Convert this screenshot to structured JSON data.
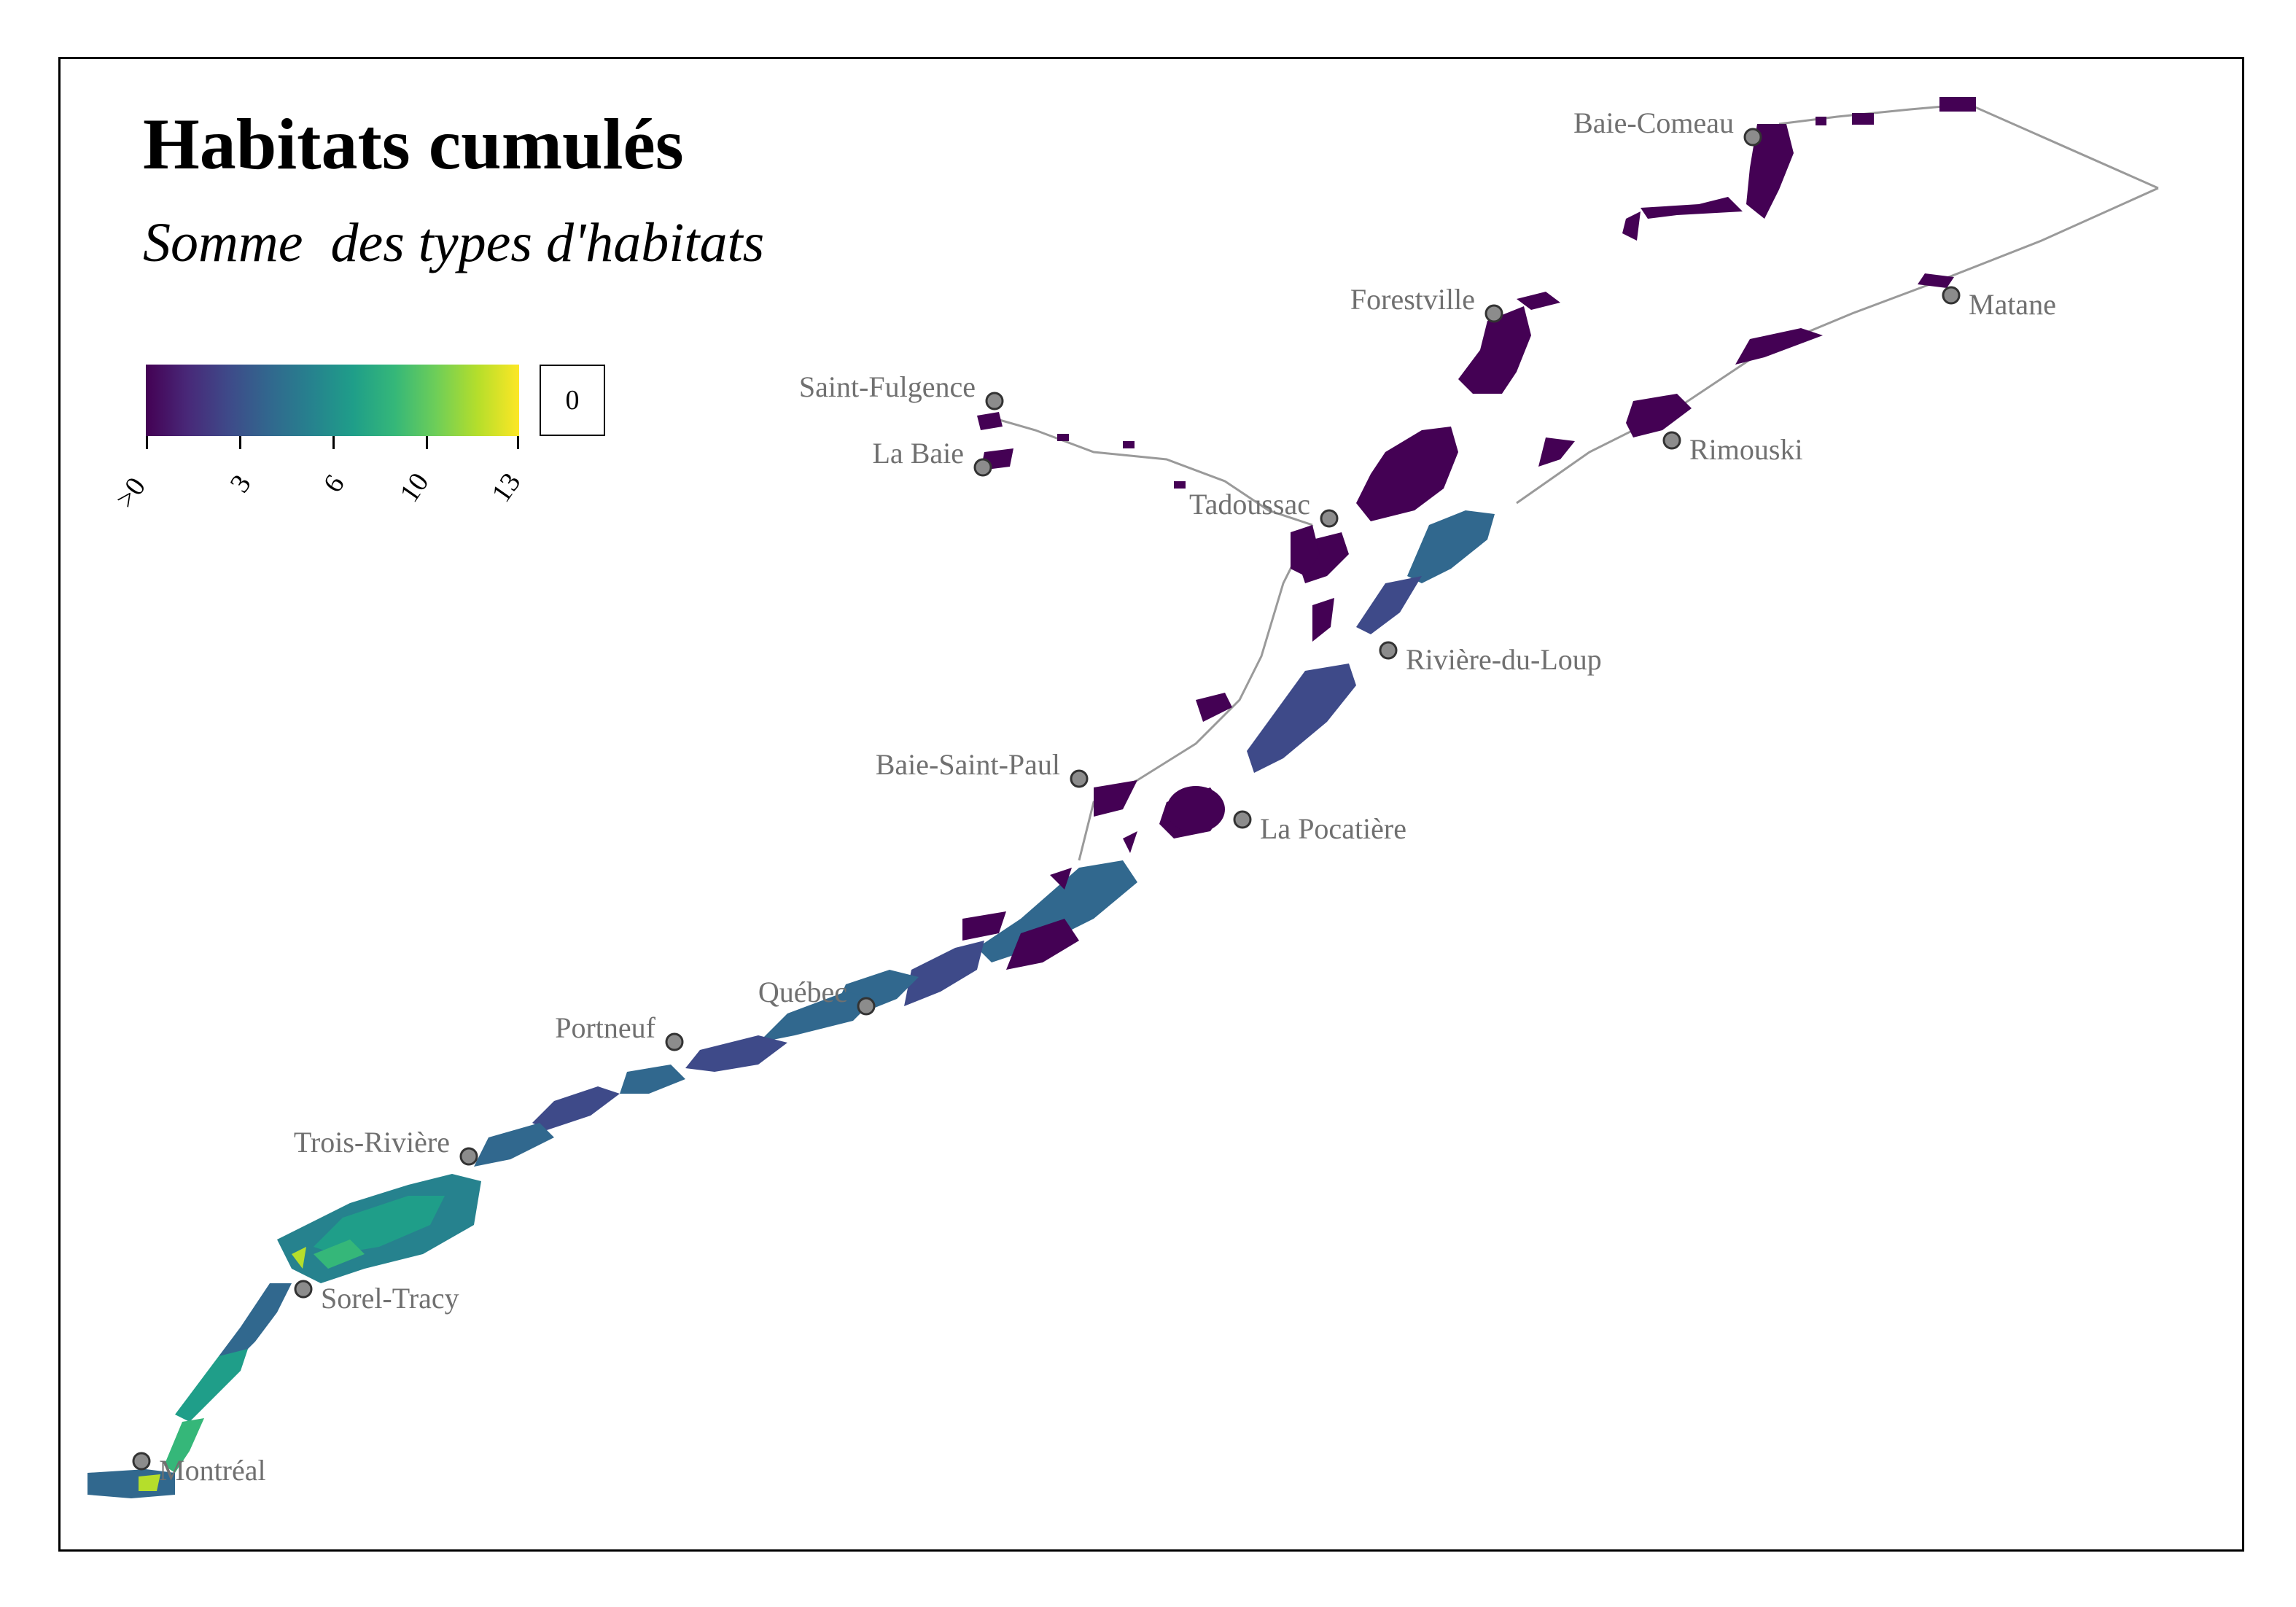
{
  "title": "Habitats cumulés",
  "subtitle": "Somme  des types d'habitats",
  "legend": {
    "tick_labels": [
      ">0",
      "3",
      "6",
      "10",
      "13"
    ],
    "tick_values": [
      0,
      3,
      6,
      10,
      13
    ],
    "range": [
      0,
      13
    ],
    "palette": [
      "#440154",
      "#482878",
      "#3e4a89",
      "#31688e",
      "#26828e",
      "#1f9e89",
      "#35b779",
      "#6ece58",
      "#b5de2b",
      "#fde725"
    ],
    "zero_box_label": "0"
  },
  "cities": [
    {
      "name": "Baie-Comeau",
      "label_side": "left"
    },
    {
      "name": "Forestville",
      "label_side": "left"
    },
    {
      "name": "Matane",
      "label_side": "right"
    },
    {
      "name": "Saint-Fulgence",
      "label_side": "left"
    },
    {
      "name": "La Baie",
      "label_side": "left"
    },
    {
      "name": "Tadoussac",
      "label_side": "left"
    },
    {
      "name": "Rimouski",
      "label_side": "right"
    },
    {
      "name": "Rivière-du-Loup",
      "label_side": "right"
    },
    {
      "name": "Baie-Saint-Paul",
      "label_side": "left"
    },
    {
      "name": "La Pocatière",
      "label_side": "right"
    },
    {
      "name": "Québec",
      "label_side": "left"
    },
    {
      "name": "Portneuf",
      "label_side": "left"
    },
    {
      "name": "Trois-Rivière",
      "label_side": "left"
    },
    {
      "name": "Sorel-Tracy",
      "label_side": "right"
    },
    {
      "name": "Montréal",
      "label_side": "right"
    }
  ],
  "colors": {
    "city_marker_fill": "#8c8c8c",
    "city_label": "#707070",
    "coastline": "#9a9a9a",
    "habitat_low": "#440154"
  }
}
